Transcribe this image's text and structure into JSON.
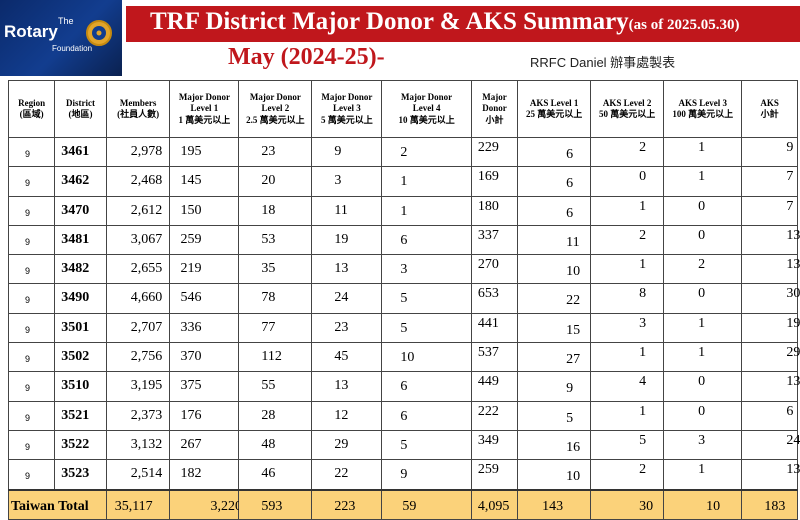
{
  "logo": {
    "line1": "The",
    "line2": "Rotary",
    "line3": "Foundation"
  },
  "title": {
    "main": "TRF District Major Donor & AKS Summary",
    "as_of": "(as of 2025.05.30)",
    "subtitle": "May (2024-25)-",
    "credit": "RRFC Daniel 辦事處製表"
  },
  "headers": [
    {
      "l1": "Region",
      "l2": "(區域)",
      "l3": ""
    },
    {
      "l1": "District",
      "l2": "(地區)",
      "l3": ""
    },
    {
      "l1": "Members",
      "l2": "(社員人數)",
      "l3": ""
    },
    {
      "l1": "Major Donor",
      "l2": "Level 1",
      "l3": "1 萬美元以上"
    },
    {
      "l1": "Major Donor",
      "l2": "Level 2",
      "l3": "2.5 萬美元以上"
    },
    {
      "l1": "Major Donor",
      "l2": "Level 3",
      "l3": "5 萬美元以上"
    },
    {
      "l1": "Major Donor",
      "l2": "Level 4",
      "l3": "10 萬美元以上"
    },
    {
      "l1": "Major",
      "l2": "Donor",
      "l3": "小計"
    },
    {
      "l1": "AKS Level 1",
      "l2": "25 萬美元以上",
      "l3": ""
    },
    {
      "l1": "AKS Level 2",
      "l2": "50 萬美元以上",
      "l3": ""
    },
    {
      "l1": "AKS Level 3",
      "l2": "100 萬美元以上",
      "l3": ""
    },
    {
      "l1": "AKS",
      "l2": "小計",
      "l3": ""
    }
  ],
  "rows": [
    {
      "region": "9",
      "district": "3461",
      "members": "2,978",
      "md1": "195",
      "md2": "23",
      "md3": "9",
      "md4": "2",
      "md_sub": "229",
      "aks1": "6",
      "aks2": "2",
      "aks3": "1",
      "aks_sub": "9"
    },
    {
      "region": "9",
      "district": "3462",
      "members": "2,468",
      "md1": "145",
      "md2": "20",
      "md3": "3",
      "md4": "1",
      "md_sub": "169",
      "aks1": "6",
      "aks2": "0",
      "aks3": "1",
      "aks_sub": "7"
    },
    {
      "region": "9",
      "district": "3470",
      "members": "2,612",
      "md1": "150",
      "md2": "18",
      "md3": "11",
      "md4": "1",
      "md_sub": "180",
      "aks1": "6",
      "aks2": "1",
      "aks3": "0",
      "aks_sub": "7"
    },
    {
      "region": "9",
      "district": "3481",
      "members": "3,067",
      "md1": "259",
      "md2": "53",
      "md3": "19",
      "md4": "6",
      "md_sub": "337",
      "aks1": "11",
      "aks2": "2",
      "aks3": "0",
      "aks_sub": "13"
    },
    {
      "region": "9",
      "district": "3482",
      "members": "2,655",
      "md1": "219",
      "md2": "35",
      "md3": "13",
      "md4": "3",
      "md_sub": "270",
      "aks1": "10",
      "aks2": "1",
      "aks3": "2",
      "aks_sub": "13"
    },
    {
      "region": "9",
      "district": "3490",
      "members": "4,660",
      "md1": "546",
      "md2": "78",
      "md3": "24",
      "md4": "5",
      "md_sub": "653",
      "aks1": "22",
      "aks2": "8",
      "aks3": "0",
      "aks_sub": "30"
    },
    {
      "region": "9",
      "district": "3501",
      "members": "2,707",
      "md1": "336",
      "md2": "77",
      "md3": "23",
      "md4": "5",
      "md_sub": "441",
      "aks1": "15",
      "aks2": "3",
      "aks3": "1",
      "aks_sub": "19"
    },
    {
      "region": "9",
      "district": "3502",
      "members": "2,756",
      "md1": "370",
      "md2": "112",
      "md3": "45",
      "md4": "10",
      "md_sub": "537",
      "aks1": "27",
      "aks2": "1",
      "aks3": "1",
      "aks_sub": "29"
    },
    {
      "region": "9",
      "district": "3510",
      "members": "3,195",
      "md1": "375",
      "md2": "55",
      "md3": "13",
      "md4": "6",
      "md_sub": "449",
      "aks1": "9",
      "aks2": "4",
      "aks3": "0",
      "aks_sub": "13"
    },
    {
      "region": "9",
      "district": "3521",
      "members": "2,373",
      "md1": "176",
      "md2": "28",
      "md3": "12",
      "md4": "6",
      "md_sub": "222",
      "aks1": "5",
      "aks2": "1",
      "aks3": "0",
      "aks_sub": "6"
    },
    {
      "region": "9",
      "district": "3522",
      "members": "3,132",
      "md1": "267",
      "md2": "48",
      "md3": "29",
      "md4": "5",
      "md_sub": "349",
      "aks1": "16",
      "aks2": "5",
      "aks3": "3",
      "aks_sub": "24"
    },
    {
      "region": "9",
      "district": "3523",
      "members": "2,514",
      "md1": "182",
      "md2": "46",
      "md3": "22",
      "md4": "9",
      "md_sub": "259",
      "aks1": "10",
      "aks2": "2",
      "aks3": "1",
      "aks_sub": "13"
    }
  ],
  "total": {
    "label": "Taiwan Total",
    "members": "35,117",
    "md1": "3,220",
    "md2": "593",
    "md3": "223",
    "md4": "59",
    "md_sub": "4,095",
    "aks1": "143",
    "aks2": "30",
    "aks3": "10",
    "aks_sub": "183"
  },
  "colors": {
    "title_bar": "#c0171c",
    "total_row": "#fbd27a",
    "logo_bg": "#123d8f"
  }
}
